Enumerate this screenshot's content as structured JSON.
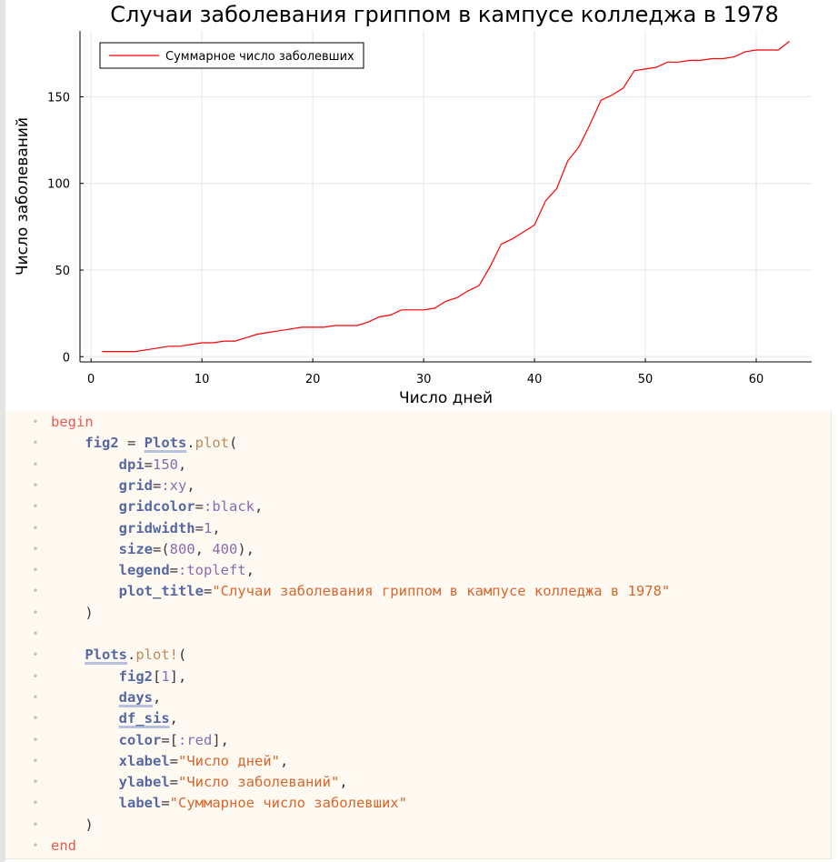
{
  "chart_data": {
    "type": "line",
    "title": "Случаи заболевания гриппом в кампусе колледжа в 1978",
    "xlabel": "Число дней",
    "ylabel": "Число заболеваний",
    "xlim": [
      -1,
      65
    ],
    "ylim": [
      -3,
      188
    ],
    "xticks": [
      0,
      10,
      20,
      30,
      40,
      50,
      60
    ],
    "yticks": [
      0,
      50,
      100,
      150
    ],
    "grid": true,
    "legend_position": "top-left",
    "series": [
      {
        "name": "Суммарное число заболевших",
        "color": "#ff0000",
        "x": [
          1,
          2,
          3,
          4,
          5,
          6,
          7,
          8,
          9,
          10,
          11,
          12,
          13,
          14,
          15,
          16,
          17,
          18,
          19,
          20,
          21,
          22,
          23,
          24,
          25,
          26,
          27,
          28,
          29,
          30,
          31,
          32,
          33,
          34,
          35,
          36,
          37,
          38,
          39,
          40,
          41,
          42,
          43,
          44,
          45,
          46,
          47,
          48,
          49,
          50,
          51,
          52,
          53,
          54,
          55,
          56,
          57,
          58,
          59,
          60,
          61,
          62,
          63
        ],
        "y": [
          3,
          3,
          3,
          3,
          4,
          5,
          6,
          6,
          7,
          8,
          8,
          9,
          9,
          11,
          13,
          14,
          15,
          16,
          17,
          17,
          17,
          18,
          18,
          18,
          20,
          23,
          24,
          27,
          27,
          27,
          28,
          32,
          34,
          38,
          41,
          52,
          65,
          68,
          72,
          76,
          90,
          97,
          113,
          121,
          134,
          148,
          151,
          155,
          165,
          166,
          167,
          170,
          170,
          171,
          171,
          172,
          172,
          173,
          176,
          177,
          177,
          177,
          182
        ]
      }
    ]
  },
  "code": {
    "lines": [
      [
        {
          "t": "begin",
          "c": "kw"
        }
      ],
      [
        {
          "t": "    "
        },
        {
          "t": "fig2",
          "c": "var"
        },
        {
          "t": " = ",
          "c": "punct"
        },
        {
          "t": "Plots",
          "c": "gvar"
        },
        {
          "t": ".",
          "c": "punct"
        },
        {
          "t": "plot",
          "c": "fn"
        },
        {
          "t": "(",
          "c": "punct"
        }
      ],
      [
        {
          "t": "        "
        },
        {
          "t": "dpi",
          "c": "var"
        },
        {
          "t": "=",
          "c": "punct"
        },
        {
          "t": "150",
          "c": "num"
        },
        {
          "t": ",",
          "c": "punct"
        }
      ],
      [
        {
          "t": "        "
        },
        {
          "t": "grid",
          "c": "var"
        },
        {
          "t": "=",
          "c": "punct"
        },
        {
          "t": ":xy",
          "c": "sym"
        },
        {
          "t": ",",
          "c": "punct"
        }
      ],
      [
        {
          "t": "        "
        },
        {
          "t": "gridcolor",
          "c": "var"
        },
        {
          "t": "=",
          "c": "punct"
        },
        {
          "t": ":black",
          "c": "sym"
        },
        {
          "t": ",",
          "c": "punct"
        }
      ],
      [
        {
          "t": "        "
        },
        {
          "t": "gridwidth",
          "c": "var"
        },
        {
          "t": "=",
          "c": "punct"
        },
        {
          "t": "1",
          "c": "num"
        },
        {
          "t": ",",
          "c": "punct"
        }
      ],
      [
        {
          "t": "        "
        },
        {
          "t": "size",
          "c": "var"
        },
        {
          "t": "=(",
          "c": "punct"
        },
        {
          "t": "800",
          "c": "num"
        },
        {
          "t": ", ",
          "c": "punct"
        },
        {
          "t": "400",
          "c": "num"
        },
        {
          "t": "),",
          "c": "punct"
        }
      ],
      [
        {
          "t": "        "
        },
        {
          "t": "legend",
          "c": "var"
        },
        {
          "t": "=",
          "c": "punct"
        },
        {
          "t": ":topleft",
          "c": "sym"
        },
        {
          "t": ",",
          "c": "punct"
        }
      ],
      [
        {
          "t": "        "
        },
        {
          "t": "plot_title",
          "c": "var"
        },
        {
          "t": "=",
          "c": "punct"
        },
        {
          "t": "\"Случаи заболевания гриппом в кампусе колледжа в 1978\"",
          "c": "str"
        }
      ],
      [
        {
          "t": "    "
        },
        {
          "t": ")",
          "c": "punct"
        }
      ],
      [],
      [
        {
          "t": "    "
        },
        {
          "t": "Plots",
          "c": "gvar"
        },
        {
          "t": ".",
          "c": "punct"
        },
        {
          "t": "plot!",
          "c": "fn"
        },
        {
          "t": "(",
          "c": "punct"
        }
      ],
      [
        {
          "t": "        "
        },
        {
          "t": "fig2",
          "c": "var"
        },
        {
          "t": "[",
          "c": "punct"
        },
        {
          "t": "1",
          "c": "num"
        },
        {
          "t": "],",
          "c": "punct"
        }
      ],
      [
        {
          "t": "        "
        },
        {
          "t": "days",
          "c": "gvar"
        },
        {
          "t": ",",
          "c": "punct"
        }
      ],
      [
        {
          "t": "        "
        },
        {
          "t": "df_sis",
          "c": "gvar"
        },
        {
          "t": ",",
          "c": "punct"
        }
      ],
      [
        {
          "t": "        "
        },
        {
          "t": "color",
          "c": "var"
        },
        {
          "t": "=[",
          "c": "punct"
        },
        {
          "t": ":red",
          "c": "sym"
        },
        {
          "t": "],",
          "c": "punct"
        }
      ],
      [
        {
          "t": "        "
        },
        {
          "t": "xlabel",
          "c": "var"
        },
        {
          "t": "=",
          "c": "punct"
        },
        {
          "t": "\"Число дней\"",
          "c": "str"
        },
        {
          "t": ",",
          "c": "punct"
        }
      ],
      [
        {
          "t": "        "
        },
        {
          "t": "ylabel",
          "c": "var"
        },
        {
          "t": "=",
          "c": "punct"
        },
        {
          "t": "\"Число заболеваний\"",
          "c": "str"
        },
        {
          "t": ",",
          "c": "punct"
        }
      ],
      [
        {
          "t": "        "
        },
        {
          "t": "label",
          "c": "var"
        },
        {
          "t": "=",
          "c": "punct"
        },
        {
          "t": "\"Суммарное число заболевших\"",
          "c": "str"
        }
      ],
      [
        {
          "t": "    "
        },
        {
          "t": ")",
          "c": "punct"
        }
      ],
      [
        {
          "t": "end",
          "c": "kw"
        }
      ]
    ]
  }
}
